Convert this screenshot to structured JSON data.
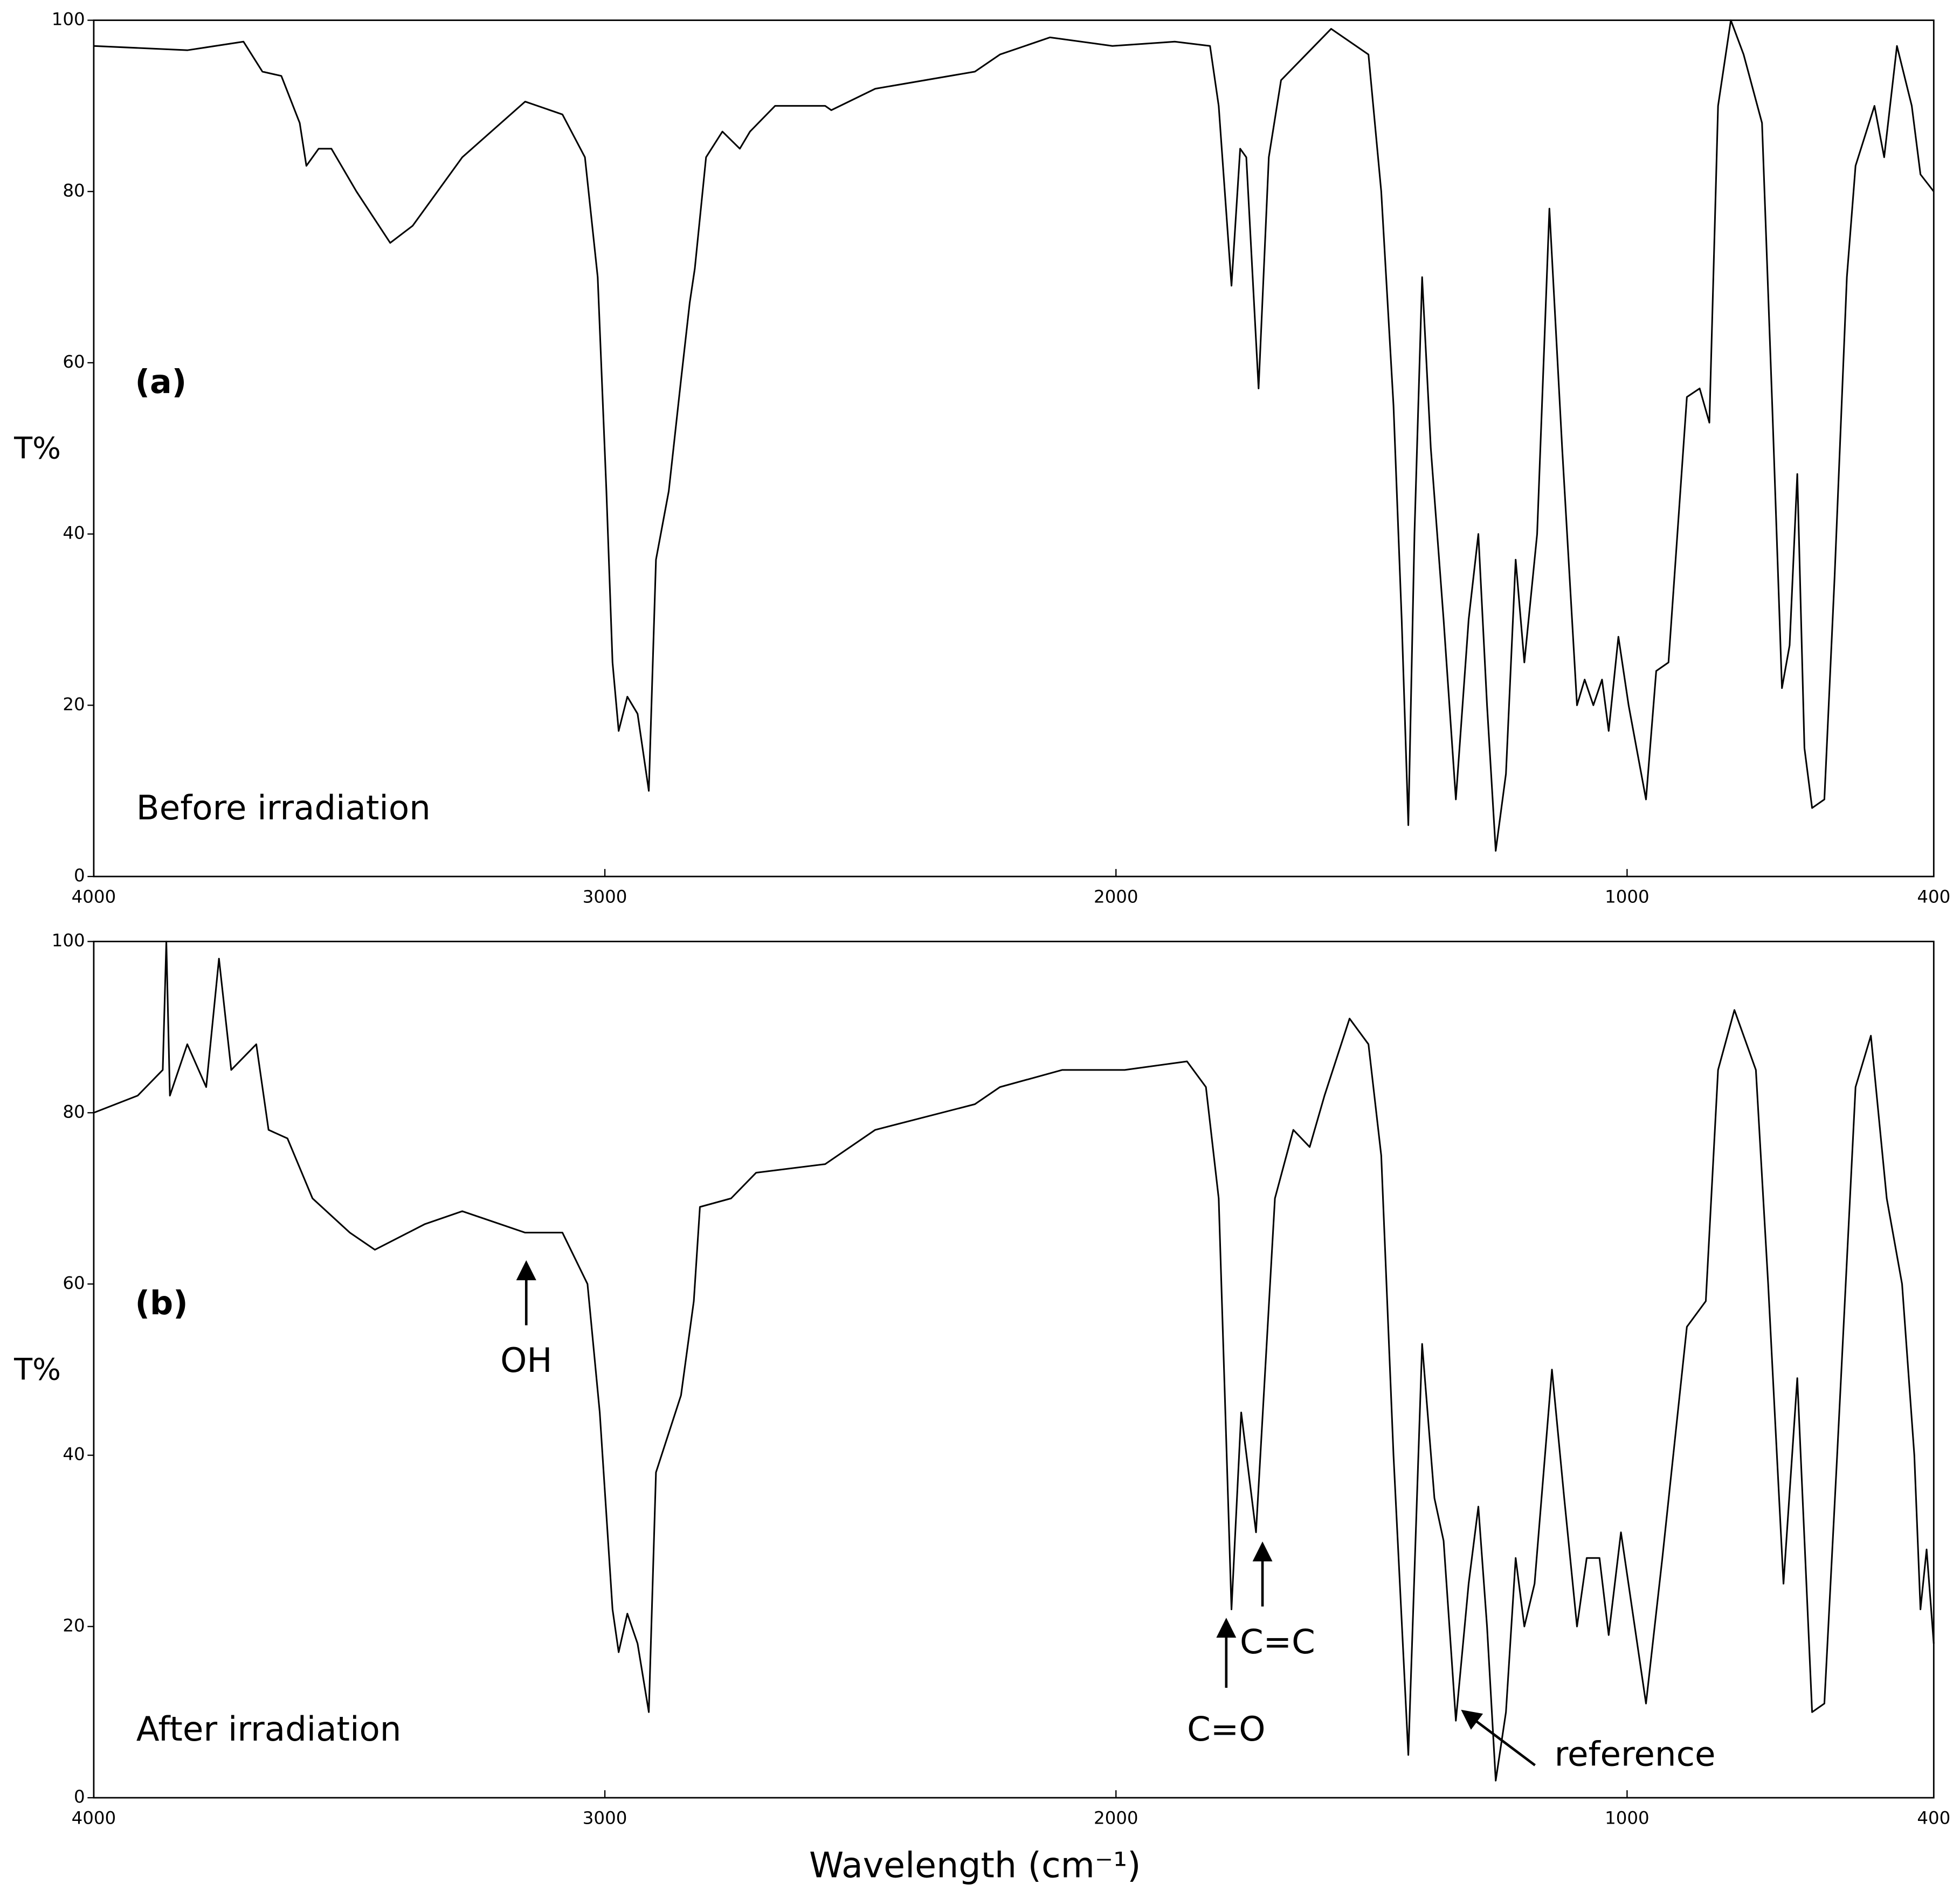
{
  "chart_data": [
    {
      "type": "line",
      "panel_label": "(a)",
      "ylabel": "T%",
      "annotations": [
        "Before irradiation"
      ],
      "x": [
        4000,
        3817,
        3707,
        3670,
        3633,
        3597,
        3584,
        3560,
        3535,
        3486,
        3420,
        3376,
        3279,
        3156,
        3083,
        3039,
        3014,
        2997,
        2985,
        2973,
        2956,
        2936,
        2914,
        2900,
        2875,
        2851,
        2834,
        2824,
        2802,
        2770,
        2736,
        2716,
        2667,
        2569,
        2557,
        2471,
        2276,
        2227,
        2129,
        2007,
        1885,
        1816,
        1799,
        1774,
        1757,
        1745,
        1721,
        1701,
        1677,
        1579,
        1506,
        1481,
        1457,
        1441,
        1428,
        1416,
        1401,
        1384,
        1359,
        1335,
        1310,
        1291,
        1274,
        1257,
        1237,
        1218,
        1201,
        1176,
        1152,
        1127,
        1098,
        1083,
        1066,
        1049,
        1036,
        1017,
        997,
        963,
        943,
        919,
        883,
        858,
        839,
        822,
        797,
        772,
        736,
        716,
        697,
        682,
        667,
        653,
        638,
        614,
        594,
        570,
        553,
        516,
        497,
        472,
        443,
        426,
        400
      ],
      "series": [
        {
          "color": "#000000",
          "values": [
            97,
            96.5,
            97.5,
            94,
            93.5,
            88,
            83,
            85,
            85,
            80,
            74,
            76,
            84,
            90.5,
            89,
            84,
            70,
            45,
            25,
            17,
            21,
            19,
            10,
            37,
            45,
            58,
            67,
            71,
            84,
            87,
            85,
            87,
            90,
            90,
            89.5,
            92,
            94,
            96,
            98,
            97,
            97.5,
            97,
            90,
            69,
            85,
            84,
            57,
            84,
            93,
            99,
            96,
            80,
            55,
            30,
            6,
            40,
            70,
            50,
            30,
            9,
            30,
            40,
            20,
            3,
            12,
            37,
            25,
            40,
            78,
            50,
            20,
            23,
            20,
            23,
            17,
            28,
            20,
            9,
            24,
            25,
            56,
            57,
            53,
            90,
            100,
            96,
            88,
            55,
            22,
            27,
            47,
            15,
            8,
            9,
            35,
            70,
            83,
            90,
            84,
            97,
            90,
            82,
            80
          ]
        }
      ],
      "xlim": [
        4000,
        400
      ],
      "xticks": [
        4000,
        3000,
        2000,
        1000,
        400
      ],
      "ylim": [
        0,
        100
      ],
      "yticks": [
        0,
        20,
        40,
        60,
        80,
        100
      ]
    },
    {
      "type": "line",
      "panel_label": "(b)",
      "ylabel": "T%",
      "xlabel": "Wavelength (cm⁻¹)",
      "annotations": [
        "After irradiation",
        "OH",
        "C=O",
        "C=C",
        "reference"
      ],
      "x": [
        4000,
        3914,
        3865,
        3858,
        3851,
        3817,
        3780,
        3755,
        3731,
        3682,
        3658,
        3621,
        3572,
        3499,
        3450,
        3352,
        3279,
        3156,
        3083,
        3034,
        3010,
        2985,
        2973,
        2956,
        2936,
        2914,
        2900,
        2851,
        2826,
        2814,
        2753,
        2704,
        2569,
        2471,
        2276,
        2227,
        2105,
        1983,
        1861,
        1824,
        1799,
        1774,
        1755,
        1726,
        1689,
        1653,
        1621,
        1592,
        1543,
        1506,
        1481,
        1457,
        1428,
        1401,
        1377,
        1359,
        1335,
        1310,
        1291,
        1274,
        1257,
        1237,
        1218,
        1201,
        1181,
        1147,
        1123,
        1098,
        1079,
        1054,
        1036,
        1012,
        963,
        931,
        883,
        846,
        822,
        790,
        748,
        724,
        694,
        667,
        638,
        614,
        589,
        553,
        523,
        492,
        462,
        438,
        426,
        414,
        400
      ],
      "series": [
        {
          "color": "#000000",
          "values": [
            80,
            82,
            85,
            100,
            82,
            88,
            83,
            98,
            85,
            88,
            78,
            77,
            70,
            66,
            64,
            67,
            68.5,
            66,
            66,
            60,
            45,
            22,
            17,
            21.5,
            18,
            10,
            38,
            47,
            58,
            69,
            70,
            73,
            74,
            78,
            81,
            83,
            85,
            85,
            86,
            83,
            70,
            22,
            45,
            31,
            70,
            78,
            76,
            82,
            91,
            88,
            75,
            40,
            5,
            53,
            35,
            30,
            9,
            25,
            34,
            20,
            2,
            10,
            28,
            20,
            25,
            50,
            35,
            20,
            28,
            28,
            19,
            31,
            11,
            28,
            55,
            58,
            85,
            92,
            85,
            60,
            25,
            49,
            10,
            11,
            40,
            83,
            89,
            70,
            60,
            40,
            22,
            29,
            18
          ]
        }
      ],
      "xlim": [
        4000,
        400
      ],
      "xticks": [
        4000,
        3000,
        2000,
        1000,
        400
      ],
      "ylim": [
        0,
        100
      ],
      "yticks": [
        0,
        20,
        40,
        60,
        80,
        100
      ]
    }
  ]
}
